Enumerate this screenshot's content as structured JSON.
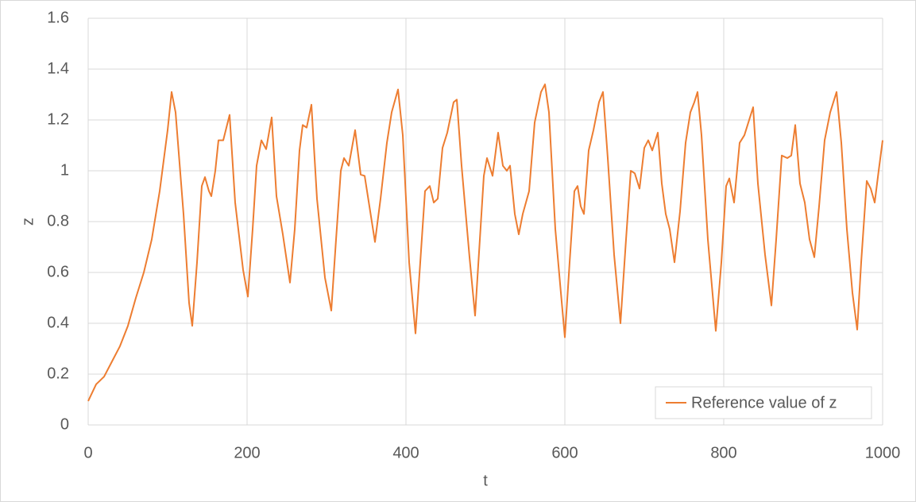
{
  "chart_data": {
    "type": "line",
    "x_label": "t",
    "y_label": "z",
    "xlim": [
      0,
      1000
    ],
    "xticks": [
      0,
      200,
      400,
      600,
      800,
      1000
    ],
    "ylim": [
      0,
      1.6
    ],
    "yticks": [
      0,
      0.2,
      0.4,
      0.6,
      0.8,
      1,
      1.2,
      1.4,
      1.6
    ],
    "grid": true,
    "legend": "lower right",
    "x": [
      0,
      10,
      20,
      30,
      40,
      50,
      60,
      70,
      80,
      90,
      100,
      105,
      110,
      120,
      127,
      131,
      137,
      143,
      147,
      152,
      155,
      160,
      164,
      170,
      178,
      185,
      195,
      201,
      207,
      212,
      218,
      224,
      231,
      237,
      245,
      254,
      260,
      266,
      270,
      275,
      281,
      288,
      298,
      306,
      312,
      318,
      322,
      328,
      336,
      343,
      348,
      355,
      361,
      368,
      376,
      382,
      390,
      396,
      404,
      412,
      418,
      424,
      430,
      435,
      440,
      446,
      452,
      460,
      464,
      470,
      480,
      487,
      493,
      498,
      502,
      509,
      516,
      522,
      527,
      531,
      537,
      542,
      547,
      555,
      562,
      570,
      575,
      580,
      588,
      595,
      600,
      606,
      612,
      616,
      620,
      624,
      630,
      636,
      643,
      648,
      654,
      662,
      670,
      677,
      683,
      688,
      694,
      700,
      705,
      710,
      717,
      722,
      727,
      732,
      738,
      745,
      752,
      758,
      763,
      767,
      772,
      780,
      790,
      797,
      803,
      807,
      813,
      820,
      826,
      837,
      843,
      852,
      860,
      866,
      873,
      880,
      885,
      890,
      896,
      902,
      908,
      914,
      920,
      927,
      934,
      942,
      948,
      955,
      962,
      968,
      973,
      980,
      985,
      990,
      995,
      1000
    ],
    "series": [
      {
        "name": "Reference value of z",
        "color": "#ed7d31",
        "values": [
          0.094,
          0.16,
          0.19,
          0.25,
          0.31,
          0.39,
          0.5,
          0.6,
          0.73,
          0.92,
          1.16,
          1.31,
          1.23,
          0.83,
          0.48,
          0.39,
          0.64,
          0.94,
          0.975,
          0.92,
          0.9,
          1.0,
          1.12,
          1.12,
          1.22,
          0.875,
          0.61,
          0.505,
          0.77,
          1.02,
          1.12,
          1.085,
          1.21,
          0.9,
          0.75,
          0.56,
          0.77,
          1.08,
          1.18,
          1.17,
          1.26,
          0.89,
          0.58,
          0.45,
          0.73,
          1.0,
          1.05,
          1.02,
          1.16,
          0.985,
          0.98,
          0.84,
          0.72,
          0.89,
          1.11,
          1.23,
          1.32,
          1.14,
          0.64,
          0.36,
          0.64,
          0.92,
          0.94,
          0.875,
          0.89,
          1.09,
          1.15,
          1.27,
          1.28,
          1.02,
          0.66,
          0.43,
          0.73,
          0.98,
          1.05,
          0.98,
          1.15,
          1.02,
          1.0,
          1.02,
          0.83,
          0.75,
          0.83,
          0.92,
          1.19,
          1.31,
          1.34,
          1.23,
          0.77,
          0.52,
          0.345,
          0.64,
          0.92,
          0.94,
          0.86,
          0.83,
          1.08,
          1.16,
          1.27,
          1.31,
          1.05,
          0.67,
          0.4,
          0.73,
          1.0,
          0.99,
          0.93,
          1.09,
          1.12,
          1.08,
          1.15,
          0.95,
          0.83,
          0.77,
          0.64,
          0.84,
          1.11,
          1.23,
          1.27,
          1.31,
          1.14,
          0.73,
          0.37,
          0.64,
          0.94,
          0.97,
          0.875,
          1.11,
          1.14,
          1.25,
          0.95,
          0.67,
          0.47,
          0.73,
          1.06,
          1.05,
          1.06,
          1.18,
          0.95,
          0.875,
          0.73,
          0.66,
          0.86,
          1.12,
          1.23,
          1.31,
          1.11,
          0.77,
          0.52,
          0.375,
          0.64,
          0.96,
          0.93,
          0.875,
          1.0,
          1.12
        ]
      }
    ]
  }
}
